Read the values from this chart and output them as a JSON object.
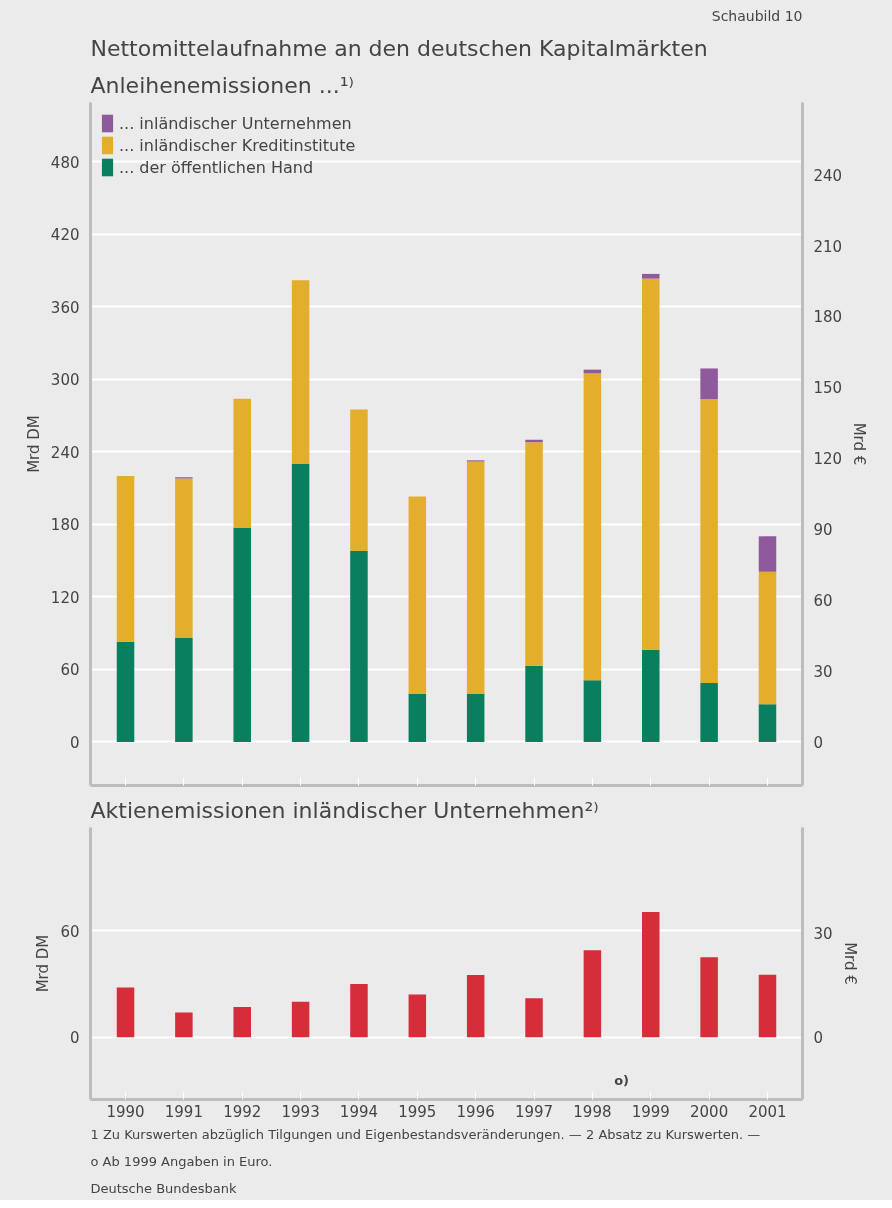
{
  "chart_data": [
    {
      "type": "bar",
      "title": "Nettomittelaufnahme an den deutschen Kapitalmärkten",
      "subtitle": "Anleihenemissionen ...¹⁾",
      "ylabel": "Mrd DM",
      "y2label": "Mrd €",
      "annotations": [
        "Schaubild 10"
      ],
      "categories": [
        "1990",
        "1991",
        "1992",
        "1993",
        "1994",
        "1995",
        "1996",
        "1997",
        "1998",
        "1999",
        "2000",
        "2001"
      ],
      "stacked": true,
      "series": [
        {
          "name": "... der öffentlichen Hand",
          "color": "#0a7f5f",
          "values": [
            83,
            86,
            177,
            230,
            158,
            40,
            40,
            63,
            51,
            null,
            null,
            null
          ]
        },
        {
          "name": "... inländischer Kreditinstitute",
          "color": "#e3ae2b",
          "values": [
            137,
            132,
            107,
            152,
            117,
            163,
            192,
            185,
            254,
            null,
            null,
            null
          ]
        },
        {
          "name": "... inländischer Unternehmen",
          "color": "#8e5a9c",
          "values": [
            0,
            1,
            0,
            0,
            0,
            0,
            1,
            2,
            3,
            null,
            null,
            null
          ]
        },
        {
          "color": "#0a7f5f",
          "axis": "y2",
          "values": [
            null,
            null,
            null,
            null,
            null,
            null,
            null,
            null,
            null,
            39,
            25,
            16
          ]
        },
        {
          "color": "#e3ae2b",
          "axis": "y2",
          "values": [
            null,
            null,
            null,
            null,
            null,
            null,
            null,
            null,
            null,
            157,
            120,
            56
          ]
        },
        {
          "color": "#8e5a9c",
          "axis": "y2",
          "values": [
            null,
            null,
            null,
            null,
            null,
            null,
            null,
            null,
            null,
            2,
            13,
            15
          ]
        }
      ],
      "ylim": [
        -36,
        529
      ],
      "yticks": [
        0,
        60,
        120,
        180,
        240,
        300,
        360,
        420,
        480
      ],
      "y2lim": [
        -18.4,
        270.5
      ],
      "y2ticks": [
        0,
        30,
        60,
        90,
        120,
        150,
        180,
        210,
        240
      ],
      "grid": "y",
      "legend": "top left",
      "tick_labels": "y"
    },
    {
      "type": "bar",
      "title": "Aktienemissionen inländischer Unternehmen²⁾",
      "ylabel": "Mrd DM",
      "y2label": "Mrd €",
      "annotations": [
        "o)",
        "1 Zu Kurswerten abzüglich Tilgungen und Eigenbestandsveränderungen. — 2 Absatz zu Kurswerten. — o Ab 1999 Angaben in Euro.",
        "Deutsche Bundesbank"
      ],
      "categories": [
        "1990",
        "1991",
        "1992",
        "1993",
        "1994",
        "1995",
        "1996",
        "1997",
        "1998",
        "1999",
        "2000",
        "2001"
      ],
      "series": [
        {
          "color": "#d62d3a",
          "values": [
            28,
            14,
            17,
            20,
            30,
            24,
            35,
            22,
            49,
            null,
            null,
            null
          ]
        },
        {
          "color": "#d62d3a",
          "axis": "y2",
          "values": [
            null,
            null,
            null,
            null,
            null,
            null,
            null,
            null,
            null,
            36,
            23,
            18
          ]
        }
      ],
      "ylim": [
        -35,
        118
      ],
      "yticks": [
        0,
        60
      ],
      "y2lim": [
        -17.9,
        60.3
      ],
      "y2ticks": [
        0,
        30
      ],
      "grid": "y"
    }
  ]
}
